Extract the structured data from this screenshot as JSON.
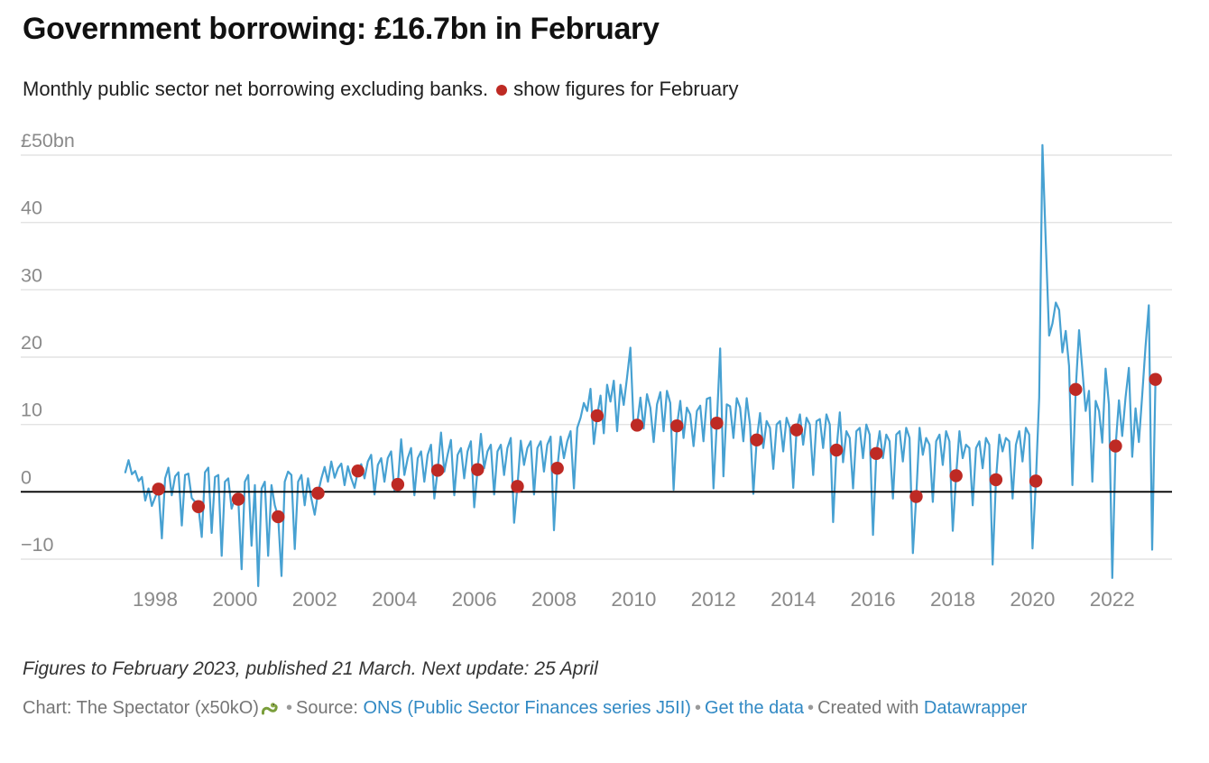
{
  "title": "Government borrowing: £16.7bn in February",
  "subtitle": {
    "text": "Monthly public sector net borrowing excluding banks.",
    "legend_label": "show figures for February"
  },
  "colors": {
    "line": "#47a1d2",
    "dot": "#be2a24",
    "grid": "#e3e3e3",
    "zero_line": "#000000",
    "axis_label": "#8a8a8a"
  },
  "y_axis": {
    "values": [
      50,
      40,
      30,
      20,
      10,
      0,
      -10
    ],
    "labels": [
      "£50bn",
      "40",
      "30",
      "20",
      "10",
      "0",
      "−10"
    ]
  },
  "x_axis": {
    "years": [
      1998,
      2000,
      2002,
      2004,
      2006,
      2008,
      2010,
      2012,
      2014,
      2016,
      2018,
      2020,
      2022
    ]
  },
  "chart_data": {
    "type": "line",
    "title": "Government borrowing: £16.7bn in February",
    "ylabel": "£bn",
    "frequency": "monthly",
    "x_start": "1997-04",
    "x_end": "2023-02",
    "ylim": [
      -15,
      52
    ],
    "grid": true,
    "y_ticks": [
      50,
      40,
      30,
      20,
      10,
      0,
      -10
    ],
    "x_tick_years": [
      1998,
      2000,
      2002,
      2004,
      2006,
      2008,
      2010,
      2012,
      2014,
      2016,
      2018,
      2020,
      2022
    ],
    "series": [
      {
        "name": "Monthly public sector net borrowing excluding banks (£bn)",
        "values": [
          2.9,
          4.7,
          2.6,
          3.1,
          1.6,
          2.2,
          -1.3,
          0.5,
          -2.1,
          -0.8,
          0.4,
          -6.9,
          2.0,
          3.6,
          -0.5,
          2.3,
          2.9,
          -5.0,
          2.5,
          2.7,
          -0.9,
          -1.5,
          -2.2,
          -6.7,
          2.9,
          3.6,
          -6.1,
          2.2,
          2.5,
          -9.5,
          1.5,
          2.0,
          -2.5,
          -1.0,
          -1.1,
          -11.5,
          1.5,
          2.5,
          -8.0,
          1.0,
          -14.0,
          0.5,
          1.5,
          -9.5,
          1.0,
          -2.0,
          -3.7,
          -12.5,
          1.5,
          3.0,
          2.5,
          -8.5,
          1.5,
          2.5,
          -2.0,
          2.0,
          -1.0,
          -3.4,
          -0.2,
          2.0,
          3.7,
          1.5,
          4.5,
          2.1,
          3.5,
          4.2,
          1.0,
          3.8,
          2.0,
          0.6,
          3.1,
          4.1,
          2.0,
          4.5,
          5.5,
          -0.4,
          4.0,
          5.0,
          1.5,
          5.0,
          6.0,
          0.2,
          1.1,
          7.8,
          2.5,
          5.0,
          6.5,
          -0.5,
          5.0,
          6.0,
          1.5,
          5.5,
          7.0,
          -1.0,
          3.2,
          8.8,
          3.0,
          5.5,
          7.7,
          -0.5,
          5.5,
          6.5,
          2.0,
          6.0,
          7.5,
          -2.3,
          3.3,
          8.6,
          3.5,
          6.0,
          7.0,
          -0.4,
          6.0,
          7.0,
          2.5,
          6.5,
          8.0,
          -4.6,
          0.8,
          7.6,
          4.0,
          6.5,
          7.5,
          -0.4,
          6.5,
          7.5,
          3.0,
          7.0,
          8.2,
          -5.7,
          3.5,
          8.2,
          5.0,
          7.5,
          9.0,
          0.5,
          9.5,
          11.0,
          13.2,
          12.0,
          15.3,
          7.1,
          11.3,
          14.3,
          8.7,
          15.9,
          13.4,
          16.5,
          9.0,
          15.9,
          12.9,
          17.0,
          21.4,
          9.6,
          9.9,
          14.0,
          9.4,
          14.5,
          12.5,
          7.4,
          13.0,
          14.8,
          9.0,
          15.0,
          13.2,
          0.3,
          9.8,
          13.5,
          8.0,
          12.5,
          11.5,
          6.8,
          12.0,
          12.8,
          7.5,
          13.8,
          14.0,
          0.5,
          10.2,
          21.3,
          2.3,
          13.0,
          12.7,
          8.0,
          13.9,
          12.5,
          7.5,
          13.9,
          10.0,
          -0.3,
          7.7,
          11.7,
          6.5,
          10.5,
          9.5,
          3.4,
          10.0,
          10.5,
          6.0,
          11.0,
          9.5,
          0.6,
          9.2,
          11.5,
          7.0,
          11.0,
          10.0,
          2.5,
          10.5,
          10.8,
          6.5,
          11.5,
          10.0,
          -4.5,
          6.2,
          11.8,
          4.4,
          9.0,
          8.0,
          0.5,
          9.0,
          9.5,
          5.0,
          10.0,
          8.5,
          -6.4,
          5.7,
          9.0,
          5.0,
          8.5,
          7.5,
          -1.0,
          8.5,
          9.0,
          4.5,
          9.5,
          8.0,
          -9.1,
          -0.7,
          9.5,
          5.5,
          8.0,
          7.0,
          -1.5,
          7.5,
          8.5,
          4.0,
          9.0,
          7.5,
          -5.8,
          2.4,
          9.0,
          5.0,
          7.0,
          6.5,
          -2.0,
          6.5,
          7.5,
          3.5,
          8.0,
          7.0,
          -10.8,
          1.8,
          8.5,
          6.0,
          8.0,
          7.5,
          -1.0,
          7.0,
          9.0,
          4.5,
          9.5,
          8.5,
          -8.4,
          1.6,
          14.0,
          51.5,
          37.0,
          23.2,
          25.0,
          28.1,
          27.0,
          20.7,
          23.9,
          18.7,
          1.0,
          15.2,
          24.0,
          18.2,
          12.0,
          15.0,
          1.5,
          13.5,
          12.0,
          7.3,
          18.3,
          13.0,
          -12.8,
          6.8,
          13.6,
          8.3,
          14.0,
          18.4,
          5.2,
          12.4,
          7.4,
          14.2,
          21.5,
          27.7,
          -8.6,
          16.7
        ]
      }
    ],
    "february_dots": {
      "name": "February figures (£bn)",
      "years": [
        1998,
        1999,
        2000,
        2001,
        2002,
        2003,
        2004,
        2005,
        2006,
        2007,
        2008,
        2009,
        2010,
        2011,
        2012,
        2013,
        2014,
        2015,
        2016,
        2017,
        2018,
        2019,
        2020,
        2021,
        2022,
        2023
      ],
      "values": [
        0.4,
        -2.2,
        -1.1,
        -3.7,
        -0.2,
        3.1,
        1.1,
        3.2,
        3.3,
        0.8,
        3.5,
        11.3,
        9.9,
        9.8,
        10.2,
        7.7,
        9.2,
        6.2,
        5.7,
        -0.7,
        2.4,
        1.8,
        1.6,
        15.2,
        6.8,
        16.7
      ]
    },
    "legend_position": "in-subtitle"
  },
  "footnote": "Figures to February 2023, published 21 March. Next update: 25 April",
  "footer": {
    "chart_credit": "Chart: The Spectator (x50kO)",
    "separator": "•",
    "source_prefix": "Source:",
    "source_link": "ONS (Public Sector Finances series J5II)",
    "get_data_link": "Get the data",
    "created_prefix": "Created with",
    "created_link": "Datawrapper"
  }
}
